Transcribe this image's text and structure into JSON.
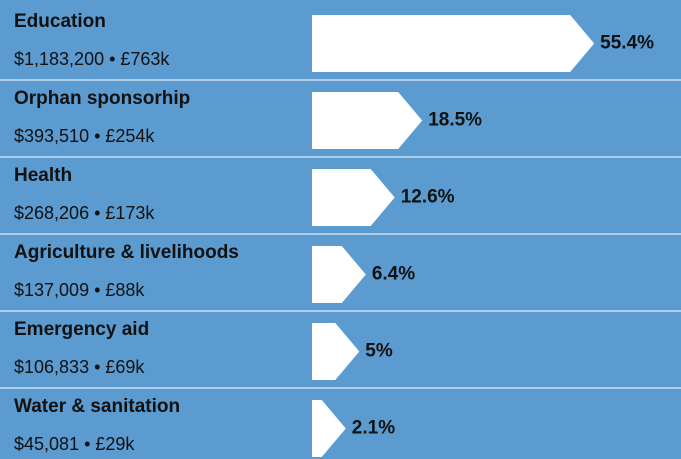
{
  "chart_data": {
    "type": "arrow-bar",
    "categories": [
      "Education",
      "Orphan sponsorhip",
      "Health",
      "Agriculture & livelihoods",
      "Emergency aid",
      "Water & sanitation"
    ],
    "details": [
      "$1,183,200 • £763k",
      "$393,510 • £254k",
      "$268,206 • £173k",
      "$137,009 • £88k",
      "$106,833 • £69k",
      "$45,081 • £29k"
    ],
    "values": [
      55.4,
      18.5,
      12.6,
      6.4,
      5,
      2.1
    ],
    "value_labels": [
      "55.4%",
      "18.5%",
      "12.6%",
      "6.4%",
      "5%",
      "2.1%"
    ],
    "color": "#ffffff"
  }
}
